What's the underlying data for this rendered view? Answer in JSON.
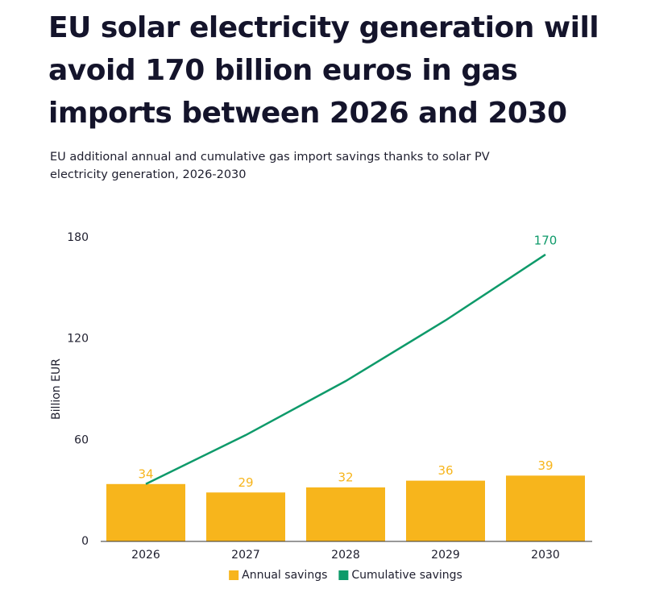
{
  "chart_data": {
    "type": "bar",
    "title": "EU solar electricity generation will avoid 170 billion euros in gas imports between 2026 and 2030",
    "subtitle": "EU additional annual and cumulative gas import savings thanks to solar PV electricity generation, 2026-2030",
    "y_label": "Billion EUR",
    "categories": [
      "2026",
      "2027",
      "2028",
      "2029",
      "2030"
    ],
    "series": [
      {
        "name": "Annual savings",
        "type": "bar",
        "color": "#f7b51c",
        "labels": "all",
        "values": [
          34,
          29,
          32,
          36,
          39
        ]
      },
      {
        "name": "Cumulative savings",
        "type": "line",
        "color": "#0e9a6a",
        "labels": "last",
        "values": [
          34,
          63,
          95,
          131,
          170
        ]
      }
    ],
    "ylim": [
      0,
      180
    ],
    "yticks": [
      0,
      60,
      120,
      180
    ],
    "grid": false,
    "legend": "bottom"
  }
}
